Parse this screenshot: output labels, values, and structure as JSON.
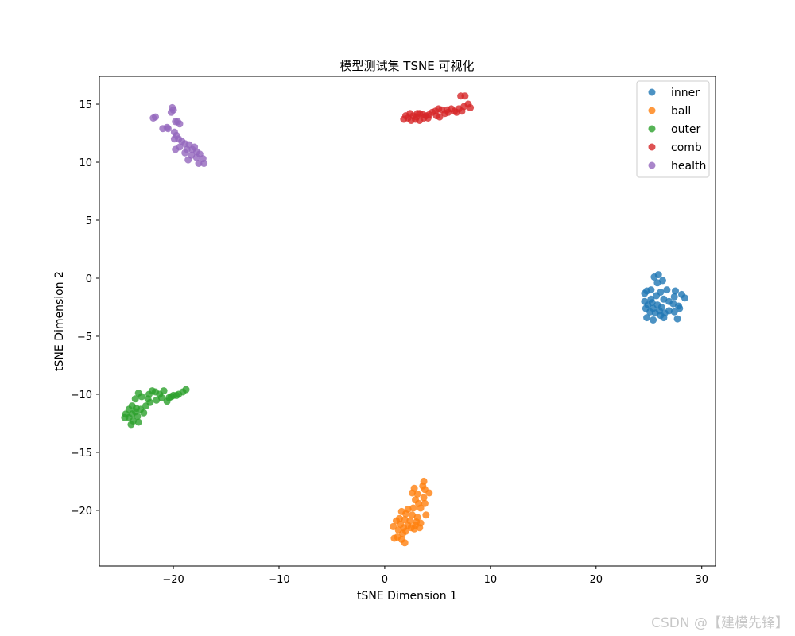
{
  "chart_data": {
    "type": "scatter",
    "title": "模型测试集 TSNE 可视化",
    "xlabel": "tSNE Dimension 1",
    "ylabel": "tSNE Dimension 2",
    "xlim": [
      -27,
      31.3
    ],
    "ylim": [
      -24.8,
      17.4
    ],
    "xticks": [
      -20,
      -10,
      0,
      10,
      20,
      30
    ],
    "yticks": [
      -20,
      -15,
      -10,
      -5,
      0,
      5,
      10,
      15
    ],
    "xtick_labels": [
      "−20",
      "−10",
      "0",
      "10",
      "20",
      "30"
    ],
    "ytick_labels": [
      "−20",
      "−15",
      "−10",
      "−5",
      "0",
      "5",
      "10",
      "15"
    ],
    "grid": false,
    "legend_position": "top-right",
    "series": [
      {
        "name": "inner",
        "color": "#1f77b4",
        "points": [
          [
            25.5,
            0.1
          ],
          [
            25.9,
            0.3
          ],
          [
            25.8,
            -0.4
          ],
          [
            26.3,
            -0.2
          ],
          [
            25.2,
            -1.0
          ],
          [
            24.8,
            -1.1
          ],
          [
            24.6,
            -1.3
          ],
          [
            25.7,
            -1.5
          ],
          [
            26.1,
            -1.2
          ],
          [
            26.7,
            -1.0
          ],
          [
            27.5,
            -1.1
          ],
          [
            28.1,
            -1.4
          ],
          [
            28.4,
            -1.7
          ],
          [
            27.4,
            -1.6
          ],
          [
            26.4,
            -1.8
          ],
          [
            26.9,
            -2.0
          ],
          [
            27.3,
            -2.2
          ],
          [
            27.8,
            -2.4
          ],
          [
            24.6,
            -2.0
          ],
          [
            24.9,
            -2.3
          ],
          [
            25.3,
            -2.1
          ],
          [
            25.8,
            -2.3
          ],
          [
            26.2,
            -2.5
          ],
          [
            25.4,
            -2.6
          ],
          [
            24.7,
            -2.6
          ],
          [
            25.1,
            -2.9
          ],
          [
            25.6,
            -3.0
          ],
          [
            26.0,
            -2.8
          ],
          [
            26.5,
            -3.0
          ],
          [
            26.9,
            -2.8
          ],
          [
            27.4,
            -2.9
          ],
          [
            27.9,
            -2.6
          ],
          [
            24.8,
            -3.4
          ],
          [
            25.4,
            -3.6
          ],
          [
            26.4,
            -3.4
          ],
          [
            27.7,
            -3.5
          ],
          [
            26.1,
            -3.2
          ],
          [
            25.2,
            -1.8
          ]
        ]
      },
      {
        "name": "ball",
        "color": "#ff7f0e",
        "points": [
          [
            3.7,
            -17.5
          ],
          [
            3.6,
            -17.9
          ],
          [
            3.8,
            -18.2
          ],
          [
            2.8,
            -18.1
          ],
          [
            2.6,
            -18.5
          ],
          [
            3.1,
            -18.6
          ],
          [
            4.2,
            -18.5
          ],
          [
            3.7,
            -18.9
          ],
          [
            2.9,
            -19.1
          ],
          [
            3.2,
            -19.4
          ],
          [
            3.8,
            -19.4
          ],
          [
            3.4,
            -19.8
          ],
          [
            2.7,
            -19.8
          ],
          [
            2.2,
            -19.9
          ],
          [
            1.6,
            -20.1
          ],
          [
            2.0,
            -20.3
          ],
          [
            2.6,
            -20.4
          ],
          [
            3.1,
            -20.6
          ],
          [
            3.9,
            -20.4
          ],
          [
            1.4,
            -20.7
          ],
          [
            1.9,
            -20.8
          ],
          [
            2.4,
            -20.9
          ],
          [
            1.1,
            -20.9
          ],
          [
            3.0,
            -21.0
          ],
          [
            3.4,
            -21.1
          ],
          [
            1.5,
            -21.2
          ],
          [
            2.2,
            -21.3
          ],
          [
            2.9,
            -21.3
          ],
          [
            0.8,
            -21.4
          ],
          [
            1.8,
            -21.5
          ],
          [
            2.5,
            -21.5
          ],
          [
            3.3,
            -21.5
          ],
          [
            1.3,
            -21.7
          ],
          [
            2.0,
            -21.8
          ],
          [
            2.8,
            -21.6
          ],
          [
            1.7,
            -22.0
          ],
          [
            1.2,
            -22.3
          ],
          [
            1.6,
            -22.5
          ],
          [
            0.9,
            -22.4
          ],
          [
            1.9,
            -22.8
          ]
        ]
      },
      {
        "name": "outer",
        "color": "#2ca02c",
        "points": [
          [
            -18.8,
            -9.6
          ],
          [
            -19.1,
            -9.8
          ],
          [
            -19.5,
            -10.0
          ],
          [
            -20.0,
            -10.1
          ],
          [
            -20.4,
            -10.3
          ],
          [
            -20.9,
            -9.7
          ],
          [
            -21.3,
            -10.0
          ],
          [
            -21.7,
            -9.8
          ],
          [
            -22.0,
            -9.7
          ],
          [
            -22.3,
            -10.0
          ],
          [
            -21.1,
            -10.3
          ],
          [
            -20.6,
            -10.6
          ],
          [
            -21.6,
            -10.5
          ],
          [
            -22.2,
            -10.7
          ],
          [
            -23.0,
            -10.2
          ],
          [
            -23.3,
            -9.9
          ],
          [
            -23.6,
            -10.4
          ],
          [
            -22.6,
            -11.0
          ],
          [
            -23.1,
            -11.3
          ],
          [
            -22.8,
            -11.6
          ],
          [
            -23.5,
            -11.2
          ],
          [
            -23.9,
            -11.0
          ],
          [
            -24.2,
            -11.3
          ],
          [
            -24.5,
            -11.7
          ],
          [
            -23.9,
            -11.7
          ],
          [
            -23.4,
            -11.9
          ],
          [
            -24.2,
            -12.0
          ],
          [
            -23.8,
            -12.3
          ],
          [
            -23.3,
            -12.4
          ],
          [
            -24.0,
            -12.6
          ],
          [
            -24.6,
            -12.0
          ],
          [
            -23.6,
            -11.5
          ],
          [
            -22.4,
            -10.4
          ],
          [
            -20.2,
            -10.2
          ],
          [
            -19.7,
            -10.1
          ]
        ]
      },
      {
        "name": "comb",
        "color": "#d62728",
        "points": [
          [
            7.2,
            15.7
          ],
          [
            7.6,
            15.7
          ],
          [
            7.9,
            15.0
          ],
          [
            8.1,
            14.7
          ],
          [
            7.5,
            14.8
          ],
          [
            7.0,
            14.6
          ],
          [
            6.6,
            14.4
          ],
          [
            6.3,
            14.6
          ],
          [
            6.0,
            14.3
          ],
          [
            5.7,
            14.2
          ],
          [
            5.4,
            14.5
          ],
          [
            5.1,
            14.6
          ],
          [
            4.8,
            14.4
          ],
          [
            4.5,
            14.3
          ],
          [
            4.9,
            14.0
          ],
          [
            5.2,
            13.9
          ],
          [
            4.2,
            14.1
          ],
          [
            3.9,
            14.0
          ],
          [
            3.6,
            14.1
          ],
          [
            3.3,
            14.2
          ],
          [
            3.0,
            13.9
          ],
          [
            2.7,
            14.0
          ],
          [
            2.4,
            14.2
          ],
          [
            2.2,
            13.8
          ],
          [
            2.5,
            13.6
          ],
          [
            2.9,
            13.7
          ],
          [
            3.3,
            13.6
          ],
          [
            3.7,
            13.8
          ],
          [
            2.0,
            14.0
          ],
          [
            1.8,
            13.7
          ],
          [
            4.1,
            13.8
          ],
          [
            6.8,
            14.3
          ],
          [
            7.3,
            14.4
          ],
          [
            5.9,
            14.5
          ],
          [
            3.1,
            14.2
          ]
        ]
      },
      {
        "name": "health",
        "color": "#9467bd",
        "points": [
          [
            -21.9,
            13.8
          ],
          [
            -21.7,
            13.9
          ],
          [
            -20.1,
            14.7
          ],
          [
            -20.0,
            14.5
          ],
          [
            -20.2,
            14.3
          ],
          [
            -19.8,
            13.5
          ],
          [
            -19.4,
            13.3
          ],
          [
            -20.6,
            13.0
          ],
          [
            -21.0,
            12.9
          ],
          [
            -19.9,
            12.6
          ],
          [
            -19.7,
            12.3
          ],
          [
            -19.5,
            12.0
          ],
          [
            -19.9,
            12.0
          ],
          [
            -19.2,
            11.8
          ],
          [
            -18.9,
            11.6
          ],
          [
            -18.5,
            11.5
          ],
          [
            -19.4,
            11.3
          ],
          [
            -18.7,
            11.1
          ],
          [
            -18.2,
            11.1
          ],
          [
            -17.8,
            10.9
          ],
          [
            -18.9,
            10.8
          ],
          [
            -18.3,
            10.6
          ],
          [
            -17.5,
            10.7
          ],
          [
            -17.8,
            10.4
          ],
          [
            -17.2,
            10.3
          ],
          [
            -18.6,
            10.2
          ],
          [
            -17.6,
            9.9
          ],
          [
            -17.1,
            9.9
          ],
          [
            -19.8,
            11.1
          ],
          [
            -18.0,
            11.3
          ],
          [
            -19.6,
            13.5
          ],
          [
            -20.5,
            12.9
          ]
        ]
      }
    ]
  },
  "watermark": "CSDN @【建模先锋】"
}
